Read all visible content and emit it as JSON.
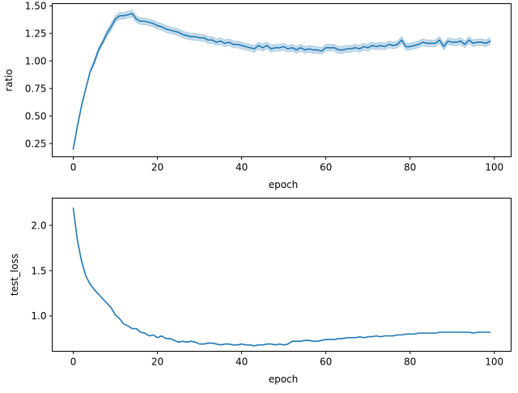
{
  "chart_data": [
    {
      "type": "line",
      "xlabel": "epoch",
      "ylabel": "ratio",
      "xlim": [
        -5,
        104
      ],
      "ylim": [
        0.13,
        1.52
      ],
      "xticks": [
        0,
        20,
        40,
        60,
        80,
        100
      ],
      "yticks": [
        0.25,
        0.5,
        0.75,
        1.0,
        1.25,
        1.5
      ],
      "ytick_labels": [
        "0.25",
        "0.50",
        "0.75",
        "1.00",
        "1.25",
        "1.50"
      ],
      "grid": false,
      "confidence_band": true,
      "color": "#1f77b4",
      "x": [
        0,
        1,
        2,
        3,
        4,
        5,
        6,
        7,
        8,
        9,
        10,
        11,
        12,
        13,
        14,
        15,
        16,
        17,
        18,
        19,
        20,
        21,
        22,
        23,
        24,
        25,
        26,
        27,
        28,
        29,
        30,
        31,
        32,
        33,
        34,
        35,
        36,
        37,
        38,
        39,
        40,
        41,
        42,
        43,
        44,
        45,
        46,
        47,
        48,
        49,
        50,
        51,
        52,
        53,
        54,
        55,
        56,
        57,
        58,
        59,
        60,
        61,
        62,
        63,
        64,
        65,
        66,
        67,
        68,
        69,
        70,
        71,
        72,
        73,
        74,
        75,
        76,
        77,
        78,
        79,
        80,
        81,
        82,
        83,
        84,
        85,
        86,
        87,
        88,
        89,
        90,
        91,
        92,
        93,
        94,
        95,
        96,
        97,
        98,
        99
      ],
      "y": [
        0.2,
        0.41,
        0.6,
        0.75,
        0.9,
        0.99,
        1.1,
        1.17,
        1.25,
        1.31,
        1.38,
        1.41,
        1.41,
        1.42,
        1.43,
        1.38,
        1.36,
        1.36,
        1.35,
        1.34,
        1.32,
        1.31,
        1.29,
        1.28,
        1.27,
        1.26,
        1.24,
        1.23,
        1.22,
        1.22,
        1.21,
        1.21,
        1.19,
        1.19,
        1.17,
        1.18,
        1.16,
        1.17,
        1.15,
        1.15,
        1.14,
        1.13,
        1.12,
        1.11,
        1.14,
        1.12,
        1.14,
        1.11,
        1.12,
        1.12,
        1.13,
        1.11,
        1.12,
        1.1,
        1.12,
        1.1,
        1.11,
        1.1,
        1.1,
        1.09,
        1.12,
        1.12,
        1.12,
        1.1,
        1.1,
        1.11,
        1.11,
        1.12,
        1.11,
        1.13,
        1.12,
        1.14,
        1.13,
        1.14,
        1.13,
        1.15,
        1.14,
        1.15,
        1.19,
        1.13,
        1.13,
        1.14,
        1.15,
        1.17,
        1.16,
        1.16,
        1.16,
        1.19,
        1.13,
        1.18,
        1.17,
        1.17,
        1.18,
        1.15,
        1.19,
        1.16,
        1.17,
        1.17,
        1.16,
        1.18
      ],
      "band_halfwidth": [
        0.01,
        0.01,
        0.01,
        0.01,
        0.01,
        0.02,
        0.02,
        0.02,
        0.03,
        0.03,
        0.03,
        0.03,
        0.03,
        0.03,
        0.03,
        0.03,
        0.03,
        0.03,
        0.03,
        0.03,
        0.03,
        0.03,
        0.03,
        0.03,
        0.03,
        0.03,
        0.03,
        0.03,
        0.03,
        0.03,
        0.03,
        0.03,
        0.03,
        0.03,
        0.03,
        0.03,
        0.03,
        0.03,
        0.03,
        0.03,
        0.03,
        0.03,
        0.03,
        0.03,
        0.03,
        0.03,
        0.03,
        0.03,
        0.03,
        0.03,
        0.03,
        0.03,
        0.03,
        0.03,
        0.03,
        0.03,
        0.03,
        0.03,
        0.03,
        0.03,
        0.03,
        0.03,
        0.03,
        0.03,
        0.03,
        0.03,
        0.03,
        0.03,
        0.03,
        0.03,
        0.03,
        0.03,
        0.03,
        0.03,
        0.03,
        0.03,
        0.03,
        0.03,
        0.03,
        0.03,
        0.03,
        0.03,
        0.03,
        0.03,
        0.03,
        0.03,
        0.03,
        0.03,
        0.03,
        0.03,
        0.03,
        0.03,
        0.03,
        0.03,
        0.03,
        0.03,
        0.03,
        0.03,
        0.03,
        0.03
      ]
    },
    {
      "type": "line",
      "xlabel": "epoch",
      "ylabel": "test_loss",
      "xlim": [
        -5,
        104
      ],
      "ylim": [
        0.61,
        2.3
      ],
      "xticks": [
        0,
        20,
        40,
        60,
        80,
        100
      ],
      "yticks": [
        1.0,
        1.5,
        2.0
      ],
      "ytick_labels": [
        "1.0",
        "1.5",
        "2.0"
      ],
      "grid": false,
      "color": "#1f77b4",
      "x": [
        0,
        1,
        2,
        3,
        4,
        5,
        6,
        7,
        8,
        9,
        10,
        11,
        12,
        13,
        14,
        15,
        16,
        17,
        18,
        19,
        20,
        21,
        22,
        23,
        24,
        25,
        26,
        27,
        28,
        29,
        30,
        31,
        32,
        33,
        34,
        35,
        36,
        37,
        38,
        39,
        40,
        41,
        42,
        43,
        44,
        45,
        46,
        47,
        48,
        49,
        50,
        51,
        52,
        53,
        54,
        55,
        56,
        57,
        58,
        59,
        60,
        61,
        62,
        63,
        64,
        65,
        66,
        67,
        68,
        69,
        70,
        71,
        72,
        73,
        74,
        75,
        76,
        77,
        78,
        79,
        80,
        81,
        82,
        83,
        84,
        85,
        86,
        87,
        88,
        89,
        90,
        91,
        92,
        93,
        94,
        95,
        96,
        97,
        98,
        99
      ],
      "y": [
        2.19,
        1.83,
        1.6,
        1.44,
        1.35,
        1.29,
        1.24,
        1.19,
        1.14,
        1.09,
        1.01,
        0.97,
        0.91,
        0.89,
        0.86,
        0.86,
        0.82,
        0.81,
        0.78,
        0.79,
        0.76,
        0.78,
        0.75,
        0.75,
        0.73,
        0.71,
        0.72,
        0.71,
        0.72,
        0.71,
        0.69,
        0.69,
        0.7,
        0.7,
        0.69,
        0.68,
        0.69,
        0.69,
        0.68,
        0.68,
        0.69,
        0.68,
        0.68,
        0.67,
        0.68,
        0.68,
        0.69,
        0.69,
        0.68,
        0.69,
        0.68,
        0.69,
        0.72,
        0.72,
        0.72,
        0.73,
        0.73,
        0.72,
        0.72,
        0.73,
        0.74,
        0.74,
        0.74,
        0.75,
        0.75,
        0.76,
        0.76,
        0.76,
        0.77,
        0.76,
        0.77,
        0.77,
        0.78,
        0.77,
        0.78,
        0.78,
        0.78,
        0.79,
        0.79,
        0.8,
        0.8,
        0.8,
        0.81,
        0.81,
        0.81,
        0.81,
        0.81,
        0.82,
        0.82,
        0.82,
        0.82,
        0.82,
        0.82,
        0.82,
        0.82,
        0.81,
        0.82,
        0.82,
        0.82,
        0.82
      ]
    }
  ]
}
